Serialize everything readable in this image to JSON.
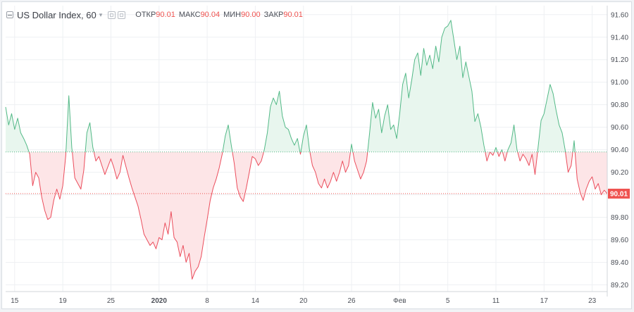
{
  "chart_data": {
    "type": "area",
    "title": "US Dollar Index, 60",
    "legend": {
      "open_label": "ОТКР",
      "open": "90.01",
      "high_label": "МАКС",
      "high": "90.04",
      "low_label": "МИН",
      "low": "90.00",
      "close_label": "ЗАКР",
      "close": "90.01"
    },
    "baseline": 90.38,
    "last_value": 90.01,
    "last_value_label": "90.01",
    "ylim": [
      89.14,
      91.68
    ],
    "yticks": [
      "89.20",
      "89.40",
      "89.60",
      "89.80",
      "90.00",
      "90.20",
      "90.40",
      "90.60",
      "90.80",
      "91.00",
      "91.20",
      "91.40",
      "91.60"
    ],
    "x_range": [
      0,
      100
    ],
    "xticks": [
      {
        "label": "15",
        "pos": 1.5
      },
      {
        "label": "19",
        "pos": 9.5
      },
      {
        "label": "25",
        "pos": 17.5
      },
      {
        "label": "2020",
        "pos": 25.5,
        "bold": true
      },
      {
        "label": "8",
        "pos": 33.5
      },
      {
        "label": "14",
        "pos": 41.5
      },
      {
        "label": "20",
        "pos": 49.5
      },
      {
        "label": "26",
        "pos": 57.5
      },
      {
        "label": "Фев",
        "pos": 65.5
      },
      {
        "label": "5",
        "pos": 73.5
      },
      {
        "label": "11",
        "pos": 81.5
      },
      {
        "label": "17",
        "pos": 89.5
      },
      {
        "label": "23",
        "pos": 97.5
      }
    ],
    "points": [
      [
        0,
        90.78
      ],
      [
        0.5,
        90.62
      ],
      [
        1,
        90.72
      ],
      [
        1.5,
        90.58
      ],
      [
        2,
        90.68
      ],
      [
        2.5,
        90.55
      ],
      [
        3,
        90.5
      ],
      [
        3.5,
        90.44
      ],
      [
        4,
        90.36
      ],
      [
        4.5,
        90.08
      ],
      [
        5,
        90.2
      ],
      [
        5.5,
        90.15
      ],
      [
        6,
        89.98
      ],
      [
        6.5,
        89.86
      ],
      [
        7,
        89.78
      ],
      [
        7.5,
        89.8
      ],
      [
        8,
        89.95
      ],
      [
        8.5,
        90.05
      ],
      [
        9,
        89.96
      ],
      [
        9.5,
        90.08
      ],
      [
        10,
        90.35
      ],
      [
        10.5,
        90.88
      ],
      [
        11,
        90.42
      ],
      [
        11.5,
        90.15
      ],
      [
        12,
        90.1
      ],
      [
        12.5,
        90.05
      ],
      [
        13,
        90.22
      ],
      [
        13.5,
        90.55
      ],
      [
        14,
        90.64
      ],
      [
        14.5,
        90.42
      ],
      [
        15,
        90.3
      ],
      [
        15.5,
        90.34
      ],
      [
        16,
        90.26
      ],
      [
        16.5,
        90.18
      ],
      [
        17,
        90.25
      ],
      [
        17.5,
        90.32
      ],
      [
        18,
        90.24
      ],
      [
        18.5,
        90.14
      ],
      [
        19,
        90.2
      ],
      [
        19.5,
        90.35
      ],
      [
        20,
        90.25
      ],
      [
        20.5,
        90.15
      ],
      [
        21,
        90.06
      ],
      [
        21.5,
        89.98
      ],
      [
        22,
        89.9
      ],
      [
        22.5,
        89.78
      ],
      [
        23,
        89.65
      ],
      [
        23.5,
        89.6
      ],
      [
        24,
        89.55
      ],
      [
        24.5,
        89.58
      ],
      [
        25,
        89.52
      ],
      [
        25.5,
        89.62
      ],
      [
        26,
        89.6
      ],
      [
        26.5,
        89.75
      ],
      [
        27,
        89.65
      ],
      [
        27.5,
        89.85
      ],
      [
        28,
        89.62
      ],
      [
        28.5,
        89.58
      ],
      [
        29,
        89.45
      ],
      [
        29.5,
        89.55
      ],
      [
        30,
        89.4
      ],
      [
        30.5,
        89.48
      ],
      [
        31,
        89.25
      ],
      [
        31.5,
        89.32
      ],
      [
        32,
        89.36
      ],
      [
        32.5,
        89.45
      ],
      [
        33,
        89.62
      ],
      [
        33.5,
        89.78
      ],
      [
        34,
        89.95
      ],
      [
        34.5,
        90.06
      ],
      [
        35,
        90.14
      ],
      [
        35.5,
        90.24
      ],
      [
        36,
        90.36
      ],
      [
        36.5,
        90.52
      ],
      [
        37,
        90.62
      ],
      [
        37.5,
        90.44
      ],
      [
        38,
        90.28
      ],
      [
        38.5,
        90.06
      ],
      [
        39,
        89.98
      ],
      [
        39.5,
        89.94
      ],
      [
        40,
        90.06
      ],
      [
        40.5,
        90.2
      ],
      [
        41,
        90.34
      ],
      [
        41.5,
        90.32
      ],
      [
        42,
        90.26
      ],
      [
        42.5,
        90.3
      ],
      [
        43,
        90.4
      ],
      [
        43.5,
        90.55
      ],
      [
        44,
        90.78
      ],
      [
        44.5,
        90.86
      ],
      [
        45,
        90.8
      ],
      [
        45.5,
        90.92
      ],
      [
        46,
        90.7
      ],
      [
        46.5,
        90.6
      ],
      [
        47,
        90.58
      ],
      [
        47.5,
        90.5
      ],
      [
        48,
        90.44
      ],
      [
        48.5,
        90.5
      ],
      [
        49,
        90.36
      ],
      [
        49.5,
        90.52
      ],
      [
        50,
        90.62
      ],
      [
        50.5,
        90.4
      ],
      [
        51,
        90.26
      ],
      [
        51.5,
        90.2
      ],
      [
        52,
        90.1
      ],
      [
        52.5,
        90.06
      ],
      [
        53,
        90.14
      ],
      [
        53.5,
        90.06
      ],
      [
        54,
        90.12
      ],
      [
        54.5,
        90.2
      ],
      [
        55,
        90.12
      ],
      [
        55.5,
        90.2
      ],
      [
        56,
        90.3
      ],
      [
        56.5,
        90.2
      ],
      [
        57,
        90.26
      ],
      [
        57.5,
        90.45
      ],
      [
        58,
        90.3
      ],
      [
        58.5,
        90.22
      ],
      [
        59,
        90.14
      ],
      [
        59.5,
        90.2
      ],
      [
        60,
        90.3
      ],
      [
        60.5,
        90.55
      ],
      [
        61,
        90.82
      ],
      [
        61.5,
        90.68
      ],
      [
        62,
        90.76
      ],
      [
        62.5,
        90.55
      ],
      [
        63,
        90.7
      ],
      [
        63.5,
        90.8
      ],
      [
        64,
        90.58
      ],
      [
        64.5,
        90.62
      ],
      [
        65,
        90.5
      ],
      [
        65.5,
        90.72
      ],
      [
        66,
        90.98
      ],
      [
        66.5,
        91.08
      ],
      [
        67,
        90.86
      ],
      [
        67.5,
        91.02
      ],
      [
        68,
        91.2
      ],
      [
        68.5,
        91.26
      ],
      [
        69,
        91.06
      ],
      [
        69.5,
        91.3
      ],
      [
        70,
        91.15
      ],
      [
        70.5,
        91.24
      ],
      [
        71,
        91.12
      ],
      [
        71.5,
        91.32
      ],
      [
        72,
        91.18
      ],
      [
        72.5,
        91.4
      ],
      [
        73,
        91.48
      ],
      [
        73.5,
        91.5
      ],
      [
        74,
        91.55
      ],
      [
        74.5,
        91.38
      ],
      [
        75,
        91.2
      ],
      [
        75.5,
        91.32
      ],
      [
        76,
        91.04
      ],
      [
        76.5,
        91.18
      ],
      [
        77,
        91.05
      ],
      [
        77.5,
        90.92
      ],
      [
        78,
        90.65
      ],
      [
        78.5,
        90.72
      ],
      [
        79,
        90.6
      ],
      [
        79.5,
        90.44
      ],
      [
        80,
        90.3
      ],
      [
        80.5,
        90.38
      ],
      [
        81,
        90.35
      ],
      [
        81.5,
        90.42
      ],
      [
        82,
        90.34
      ],
      [
        82.5,
        90.4
      ],
      [
        83,
        90.3
      ],
      [
        83.5,
        90.4
      ],
      [
        84,
        90.46
      ],
      [
        84.5,
        90.62
      ],
      [
        85,
        90.4
      ],
      [
        85.5,
        90.3
      ],
      [
        86,
        90.36
      ],
      [
        86.5,
        90.32
      ],
      [
        87,
        90.26
      ],
      [
        87.5,
        90.36
      ],
      [
        88,
        90.18
      ],
      [
        88.5,
        90.42
      ],
      [
        89,
        90.66
      ],
      [
        89.5,
        90.72
      ],
      [
        90,
        90.85
      ],
      [
        90.5,
        90.98
      ],
      [
        91,
        90.9
      ],
      [
        91.5,
        90.75
      ],
      [
        92,
        90.62
      ],
      [
        92.5,
        90.55
      ],
      [
        93,
        90.4
      ],
      [
        93.5,
        90.2
      ],
      [
        94,
        90.26
      ],
      [
        94.5,
        90.48
      ],
      [
        95,
        90.14
      ],
      [
        95.5,
        90.02
      ],
      [
        96,
        89.95
      ],
      [
        96.5,
        90.05
      ],
      [
        97,
        90.12
      ],
      [
        97.5,
        90.16
      ],
      [
        98,
        90.05
      ],
      [
        98.5,
        90.1
      ],
      [
        99,
        90.0
      ],
      [
        99.5,
        90.04
      ],
      [
        100,
        90.01
      ]
    ]
  },
  "colors": {
    "up_line": "#53b987",
    "up_fill": "#e8f6ee",
    "down_line": "#eb4d5c",
    "down_fill": "#fde5e7",
    "baseline_line": "#53b987",
    "last_line": "#ef5350",
    "last_bg": "#ef5350",
    "grid": "#eef0f3",
    "axis": "#d0d4da"
  }
}
